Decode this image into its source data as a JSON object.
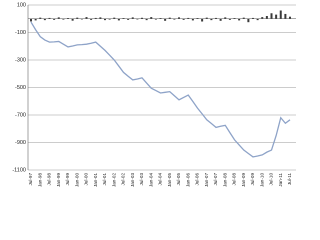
{
  "chart_data": {
    "type": "bar-line",
    "categories": [
      "Jul-97",
      null,
      "Jan-98",
      null,
      "Jul-98",
      null,
      "Jan-99",
      null,
      "Jul-99",
      null,
      "Jan-00",
      null,
      "Jul-00",
      null,
      "Jan-01",
      null,
      "Jul-01",
      null,
      "Jan-02",
      null,
      "Jul-02",
      null,
      "Jan-03",
      null,
      "Jul-03",
      null,
      "Jan-04",
      null,
      "Jul-04",
      null,
      "Jan-05",
      null,
      "Jul-05",
      null,
      "Jan-06",
      null,
      "Jul-06",
      null,
      "Jan-07",
      null,
      "Jul-07",
      null,
      "Jan-08",
      null,
      "Jul-08",
      null,
      "Jan-09",
      null,
      "Jul-09",
      null,
      "Jan-10",
      null,
      "Jul-10",
      null,
      "Jan-11",
      null,
      "Jul-11"
    ],
    "series": [
      {
        "type": "bar",
        "color": "#3a3a3a",
        "values": [
          -20,
          -12,
          8,
          -10,
          6,
          -8,
          10,
          -6,
          5,
          -14,
          8,
          -5,
          12,
          -8,
          6,
          10,
          -10,
          -6,
          8,
          -12,
          5,
          -8,
          10,
          -5,
          7,
          -10,
          12,
          -6,
          5,
          -15,
          8,
          -6,
          10,
          -8,
          6,
          -12,
          5,
          -20,
          8,
          -10,
          6,
          -15,
          10,
          -8,
          5,
          -12,
          8,
          -25,
          6,
          -10,
          12,
          20,
          40,
          30,
          60,
          35,
          15
        ]
      },
      {
        "type": "line",
        "color": "#8ea3c8",
        "values": [
          -24,
          -80,
          -130,
          -155,
          -170,
          -168,
          -165,
          -185,
          -205,
          -198,
          -190,
          -188,
          -185,
          -178,
          -170,
          -200,
          -230,
          -265,
          -300,
          -345,
          -390,
          -418,
          -445,
          -438,
          -430,
          -468,
          -505,
          -522,
          -540,
          -535,
          -530,
          -560,
          -590,
          -572,
          -555,
          -602,
          -650,
          -692,
          -735,
          -762,
          -790,
          -782,
          -775,
          -828,
          -880,
          -918,
          -955,
          -980,
          -1005,
          -998,
          -990,
          -970,
          -955,
          -850,
          -720,
          -760,
          -735
        ]
      }
    ],
    "ylim": [
      -1100,
      100
    ],
    "yticks": [
      100,
      -100,
      -300,
      -500,
      -700,
      -900,
      -1100
    ],
    "grid": true
  }
}
